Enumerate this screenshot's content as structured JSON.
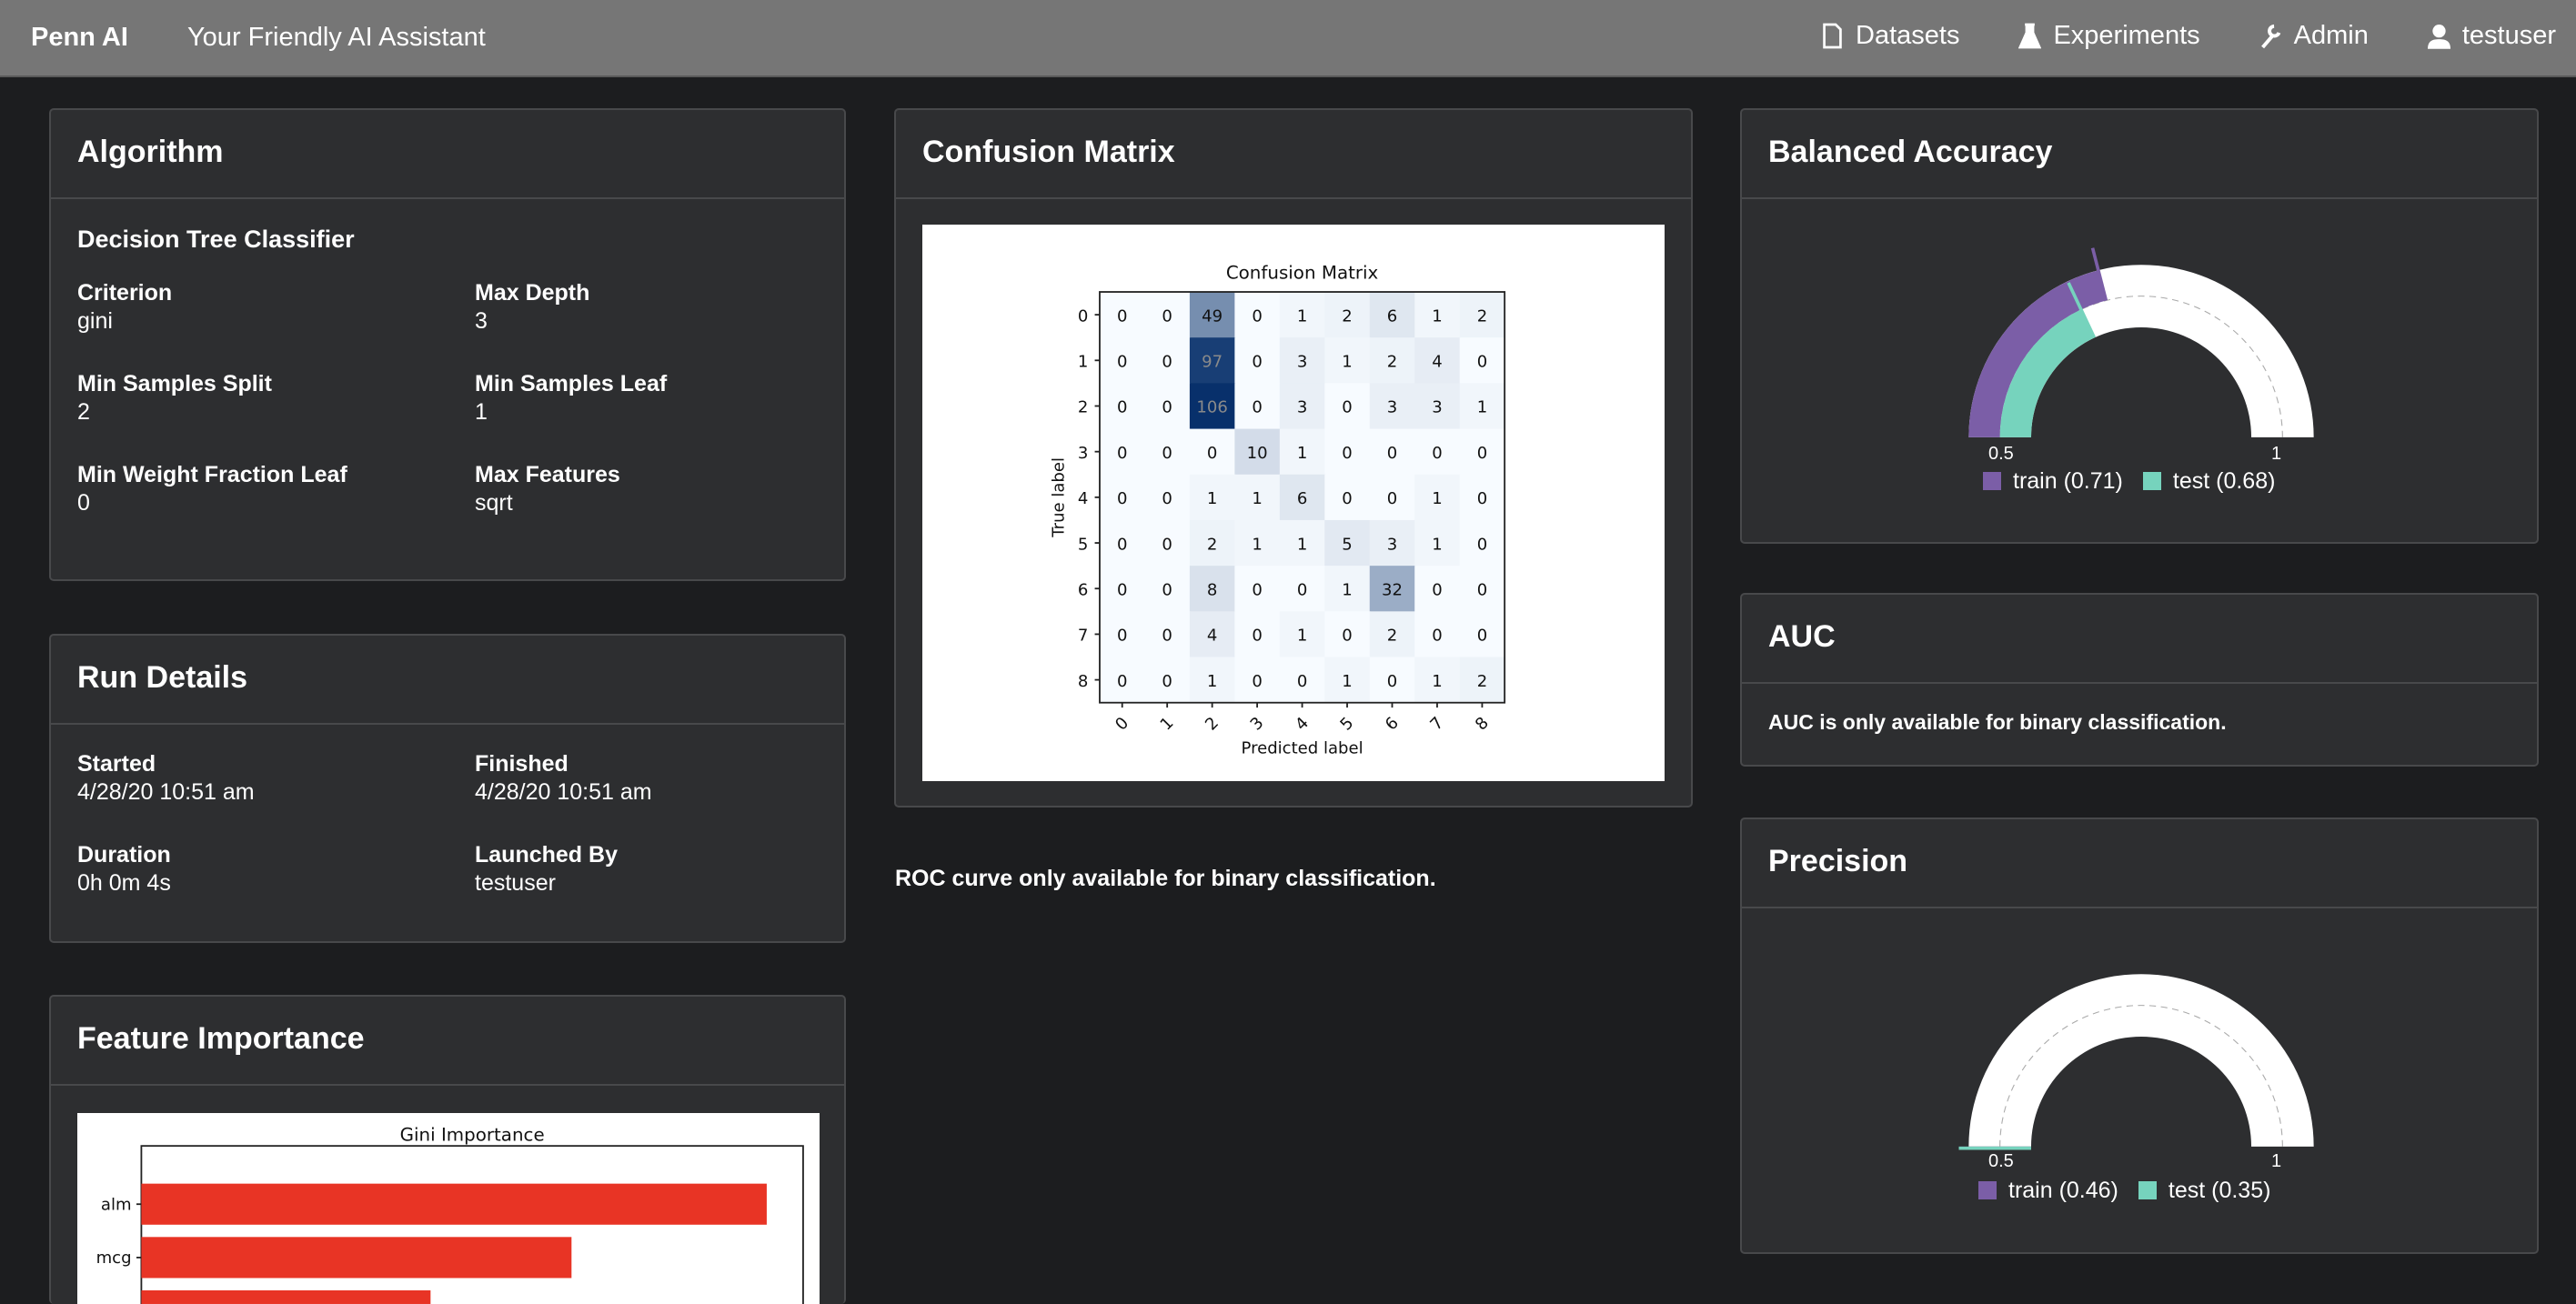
{
  "nav": {
    "brand": "Penn AI",
    "tagline": "Your Friendly AI Assistant",
    "items": [
      {
        "label": "Datasets",
        "icon": "file-icon"
      },
      {
        "label": "Experiments",
        "icon": "flask-icon"
      },
      {
        "label": "Admin",
        "icon": "wrench-icon"
      },
      {
        "label": "testuser",
        "icon": "user-icon"
      }
    ]
  },
  "algorithm": {
    "title": "Algorithm",
    "name": "Decision Tree Classifier",
    "params": [
      {
        "label": "Criterion",
        "value": "gini"
      },
      {
        "label": "Max Depth",
        "value": "3"
      },
      {
        "label": "Min Samples Split",
        "value": "2"
      },
      {
        "label": "Min Samples Leaf",
        "value": "1"
      },
      {
        "label": "Min Weight Fraction Leaf",
        "value": "0"
      },
      {
        "label": "Max Features",
        "value": "sqrt"
      }
    ]
  },
  "run": {
    "title": "Run Details",
    "fields": [
      {
        "label": "Started",
        "value": "4/28/20 10:51 am"
      },
      {
        "label": "Finished",
        "value": "4/28/20 10:51 am"
      },
      {
        "label": "Duration",
        "value": "0h 0m 4s"
      },
      {
        "label": "Launched By",
        "value": "testuser"
      }
    ]
  },
  "feature": {
    "title": "Feature Importance"
  },
  "confusion": {
    "title": "Confusion Matrix"
  },
  "roc": {
    "note": "ROC curve only available for binary classification."
  },
  "balanced": {
    "title": "Balanced Accuracy",
    "min_label": "0.5",
    "max_label": "1",
    "train_label": "train (0.71)",
    "test_label": "test (0.68)"
  },
  "auc": {
    "title": "AUC",
    "note": "AUC is only available for binary classification."
  },
  "precision": {
    "title": "Precision",
    "min_label": "0.5",
    "max_label": "1",
    "train_label": "train (0.46)",
    "test_label": "test (0.35)"
  },
  "colors": {
    "train": "#7b5ea7",
    "test": "#76d3bd",
    "bar": "#e83425",
    "nav": "#767676",
    "panel": "#2d2e30"
  },
  "chart_data": [
    {
      "type": "heatmap",
      "title": "Confusion Matrix",
      "xlabel": "Predicted label",
      "ylabel": "True label",
      "x_ticks": [
        "0",
        "1",
        "2",
        "3",
        "4",
        "5",
        "6",
        "7",
        "8"
      ],
      "y_ticks": [
        "0",
        "1",
        "2",
        "3",
        "4",
        "5",
        "6",
        "7",
        "8"
      ],
      "colormap": "Blues",
      "values": [
        [
          0,
          0,
          49,
          0,
          1,
          2,
          6,
          1,
          2
        ],
        [
          0,
          0,
          97,
          0,
          3,
          1,
          2,
          4,
          0
        ],
        [
          0,
          0,
          106,
          0,
          3,
          0,
          3,
          3,
          1
        ],
        [
          0,
          0,
          0,
          10,
          1,
          0,
          0,
          0,
          0
        ],
        [
          0,
          0,
          1,
          1,
          6,
          0,
          0,
          1,
          0
        ],
        [
          0,
          0,
          2,
          1,
          1,
          5,
          3,
          1,
          0
        ],
        [
          0,
          0,
          8,
          0,
          0,
          1,
          32,
          0,
          0
        ],
        [
          0,
          0,
          4,
          0,
          1,
          0,
          2,
          0,
          0
        ],
        [
          0,
          0,
          1,
          0,
          0,
          1,
          0,
          1,
          2
        ]
      ]
    },
    {
      "type": "bar",
      "orientation": "horizontal",
      "title": "Gini Importance",
      "categories": [
        "alm",
        "mcg",
        ""
      ],
      "values": [
        0.945,
        0.65,
        0.437
      ],
      "xlim": [
        0,
        1
      ]
    },
    {
      "type": "gauge",
      "title": "Balanced Accuracy",
      "range": [
        0.5,
        1
      ],
      "series": [
        {
          "name": "train",
          "value": 0.71
        },
        {
          "name": "test",
          "value": 0.68
        }
      ]
    },
    {
      "type": "gauge",
      "title": "Precision",
      "range": [
        0.5,
        1
      ],
      "series": [
        {
          "name": "train",
          "value": 0.46
        },
        {
          "name": "test",
          "value": 0.35
        }
      ]
    }
  ]
}
